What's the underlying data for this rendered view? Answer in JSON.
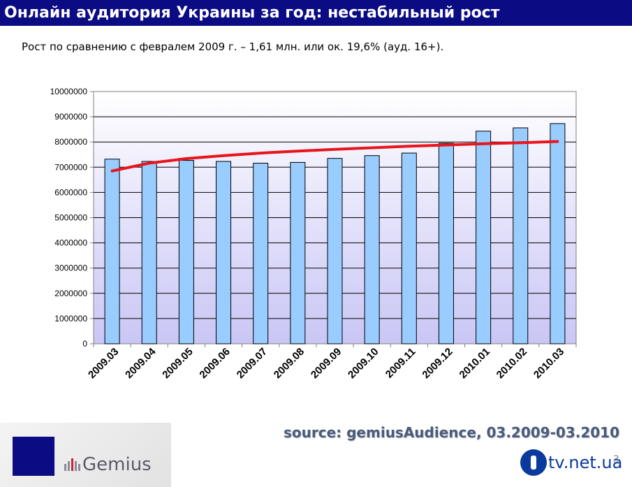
{
  "page": {
    "title": "Онлайн аудитория Украины за год: нестабильный рост",
    "subtitle": "Рост по сравнению с февралем 2009 г. – 1,61 млн. или ок. 19,6% (ауд. 16+).",
    "source": "source: gemiusAudience, 03.2009-03.2010",
    "page_number": "3",
    "logo_gemius": "Gemius",
    "logo_tvnet": "tv.net.ua"
  },
  "colors": {
    "title_bg": "#0b0b84",
    "bar_fill": "#99ccff",
    "trend_line": "#e8151c",
    "plot_bg_top": "#ffffff",
    "plot_bg_bottom": "#c9c6f5"
  },
  "chart_data": {
    "type": "bar",
    "title": "",
    "xlabel": "",
    "ylabel": "",
    "categories": [
      "2009.03",
      "2009.04",
      "2009.05",
      "2009.06",
      "2009.07",
      "2009.08",
      "2009.09",
      "2009.10",
      "2009.11",
      "2009.12",
      "2010.01",
      "2010.02",
      "2010.03"
    ],
    "series": [
      {
        "values": [
          7320000,
          7230000,
          7270000,
          7230000,
          7160000,
          7190000,
          7350000,
          7460000,
          7560000,
          7950000,
          8430000,
          8560000,
          8730000
        ]
      }
    ],
    "trendline": {
      "type": "logarithmic",
      "values": [
        6850000,
        7160000,
        7340000,
        7460000,
        7560000,
        7640000,
        7710000,
        7770000,
        7830000,
        7880000,
        7930000,
        7970000,
        8020000
      ]
    },
    "ylim": [
      0,
      10000000
    ],
    "yticks": [
      0,
      1000000,
      2000000,
      3000000,
      4000000,
      5000000,
      6000000,
      7000000,
      8000000,
      9000000,
      10000000
    ],
    "grid": true,
    "legend": "none"
  }
}
